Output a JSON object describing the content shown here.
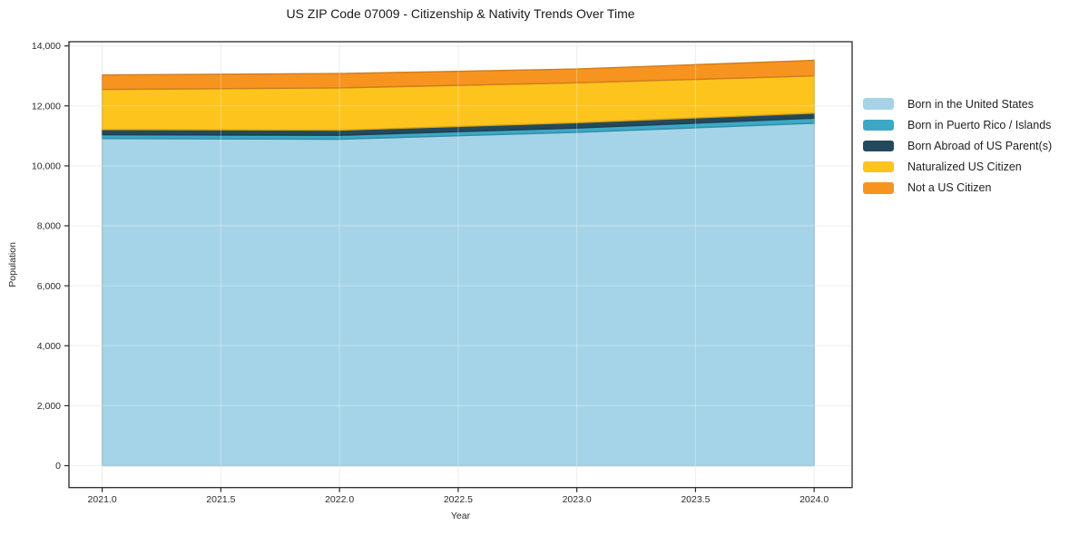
{
  "title": "US ZIP Code 07009 - Citizenship & Nativity Trends Over Time",
  "chart_data": {
    "type": "area",
    "stacked": true,
    "title": "US ZIP Code 07009 - Citizenship & Nativity Trends Over Time",
    "xlabel": "Year",
    "ylabel": "Population",
    "x": [
      2021,
      2022,
      2023,
      2024
    ],
    "series": [
      {
        "name": "Born in the United States",
        "color": "#a5d4e8",
        "values": [
          10910,
          10890,
          11120,
          11420
        ]
      },
      {
        "name": "Born in Puerto Rico / Islands",
        "color": "#3ca8c6",
        "values": [
          130,
          130,
          140,
          170
        ]
      },
      {
        "name": "Born Abroad of US Parent(s)",
        "color": "#24495c",
        "values": [
          170,
          170,
          180,
          170
        ]
      },
      {
        "name": "Naturalized US Citizen",
        "color": "#fdc41d",
        "values": [
          1340,
          1410,
          1330,
          1240
        ]
      },
      {
        "name": "Not a US Citizen",
        "color": "#f79420",
        "values": [
          480,
          480,
          460,
          520
        ]
      }
    ],
    "stack_totals": [
      13030,
      13080,
      13230,
      13520
    ],
    "xlim": [
      2020.86,
      2024.16
    ],
    "ylim": [
      -730,
      14140
    ],
    "xticks": [
      2021.0,
      2021.5,
      2022.0,
      2022.5,
      2023.0,
      2023.5,
      2024.0
    ],
    "xtick_labels": [
      "2021.0",
      "2021.5",
      "2022.0",
      "2022.5",
      "2023.0",
      "2023.5",
      "2024.0"
    ],
    "yticks": [
      0,
      2000,
      4000,
      6000,
      8000,
      10000,
      12000,
      14000
    ],
    "ytick_labels": [
      "0",
      "2,000",
      "4,000",
      "6,000",
      "8,000",
      "10,000",
      "12,000",
      "14,000"
    ],
    "grid": true,
    "legend_position": "right-outside",
    "colors": {
      "background": "#ffffff",
      "grid": "#e8e8e8",
      "spine": "#2a2a2a",
      "tick_text": "#2b2b2b",
      "title_text": "#1a1a1a"
    }
  }
}
